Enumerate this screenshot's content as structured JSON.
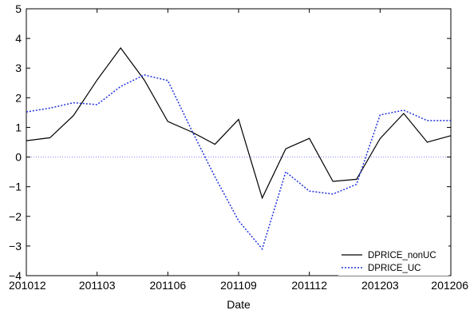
{
  "chart_data": {
    "type": "line",
    "xlabel": "Date",
    "ylabel": "",
    "ylim": [
      -4,
      5
    ],
    "y_ticks": [
      "−4",
      "−3",
      "−2",
      "−1",
      "0",
      "1",
      "2",
      "3",
      "4",
      "5"
    ],
    "x_ticks": [
      "201012",
      "201103",
      "201106",
      "201109",
      "201112",
      "201203",
      "201206"
    ],
    "x": [
      "201012",
      "201101",
      "201102",
      "201103",
      "201104",
      "201105",
      "201106",
      "201107",
      "201108",
      "201109",
      "201110",
      "201111",
      "201112",
      "201201",
      "201202",
      "201203",
      "201204",
      "201205",
      "201206"
    ],
    "series": [
      {
        "name": "DPRICE_nonUC",
        "color": "#000000",
        "style": "solid",
        "values": [
          0.55,
          0.65,
          1.4,
          2.6,
          3.68,
          2.6,
          1.2,
          0.85,
          0.43,
          1.27,
          -1.38,
          0.28,
          0.63,
          -0.82,
          -0.75,
          0.62,
          1.47,
          0.5,
          0.72
        ]
      },
      {
        "name": "DPRICE_UC",
        "color": "#2233dd",
        "style": "dotted",
        "values": [
          1.52,
          1.65,
          1.83,
          1.77,
          2.38,
          2.77,
          2.58,
          0.92,
          -0.67,
          -2.15,
          -3.1,
          -0.5,
          -1.15,
          -1.25,
          -0.92,
          1.42,
          1.58,
          1.23,
          1.23
        ]
      }
    ],
    "reference_line": {
      "y": 0,
      "color": "#8888ff",
      "style": "dotted"
    },
    "legend": {
      "position": "bottom-right"
    },
    "grid": false
  }
}
